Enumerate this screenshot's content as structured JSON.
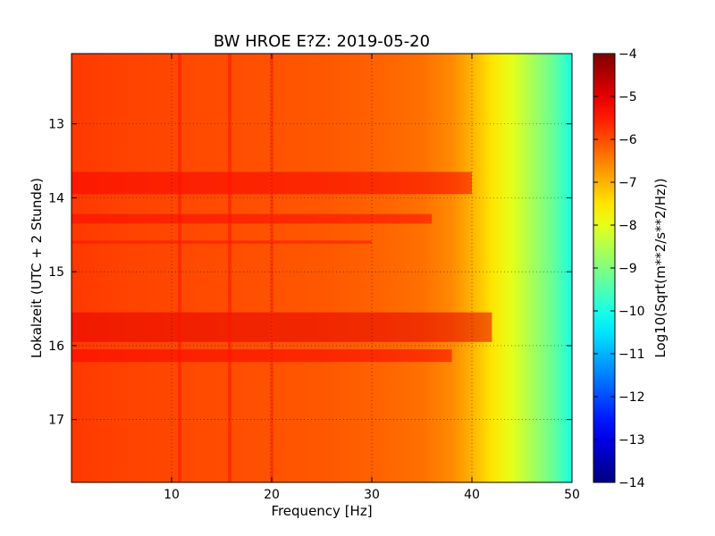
{
  "chart_data": {
    "type": "heatmap",
    "title": "BW HROE E?Z: 2019-05-20",
    "xlabel": "Frequency [Hz]",
    "ylabel": "Lokalzeit (UTC + 2 Stunde)",
    "xlim": [
      0,
      50
    ],
    "ylim": [
      17.85,
      12.05
    ],
    "y_inverted": true,
    "x_ticks": [
      10,
      20,
      30,
      40,
      50
    ],
    "y_ticks": [
      13,
      14,
      15,
      16,
      17
    ],
    "grid": true,
    "colormap": "jet",
    "colorbar": {
      "label": "Log10(Sqrt(m**2/s**2/Hz))",
      "range": [
        -14,
        -4
      ],
      "ticks": [
        -4,
        -5,
        -6,
        -7,
        -8,
        -9,
        -10,
        -11,
        -12,
        -13,
        -14
      ]
    },
    "frequency_profile": {
      "frequency_hz": [
        0,
        5,
        10,
        15,
        20,
        25,
        30,
        35,
        38,
        40,
        42,
        44,
        46,
        48,
        50
      ],
      "log10_amplitude": [
        -5.8,
        -5.9,
        -5.95,
        -6.0,
        -6.05,
        -6.1,
        -6.2,
        -6.35,
        -6.6,
        -7.0,
        -7.5,
        -8.0,
        -8.6,
        -9.2,
        -10.0
      ]
    },
    "high_energy_bands": [
      {
        "time_start": 13.65,
        "time_end": 13.95,
        "freq_start": 0,
        "freq_end": 40,
        "log10_amplitude": -5.2
      },
      {
        "time_start": 14.22,
        "time_end": 14.35,
        "freq_start": 0,
        "freq_end": 36,
        "log10_amplitude": -5.3
      },
      {
        "time_start": 14.58,
        "time_end": 14.62,
        "freq_start": 0,
        "freq_end": 30,
        "log10_amplitude": -5.4
      },
      {
        "time_start": 15.55,
        "time_end": 15.95,
        "freq_start": 0,
        "freq_end": 42,
        "log10_amplitude": -5.0
      },
      {
        "time_start": 16.05,
        "time_end": 16.22,
        "freq_start": 0,
        "freq_end": 38,
        "log10_amplitude": -5.2
      }
    ],
    "high_energy_frequency_lines": [
      {
        "frequency_hz": 10.8,
        "log10_amplitude": -5.4
      },
      {
        "frequency_hz": 15.8,
        "log10_amplitude": -5.4
      },
      {
        "frequency_hz": 20.0,
        "log10_amplitude": -5.6
      }
    ]
  }
}
